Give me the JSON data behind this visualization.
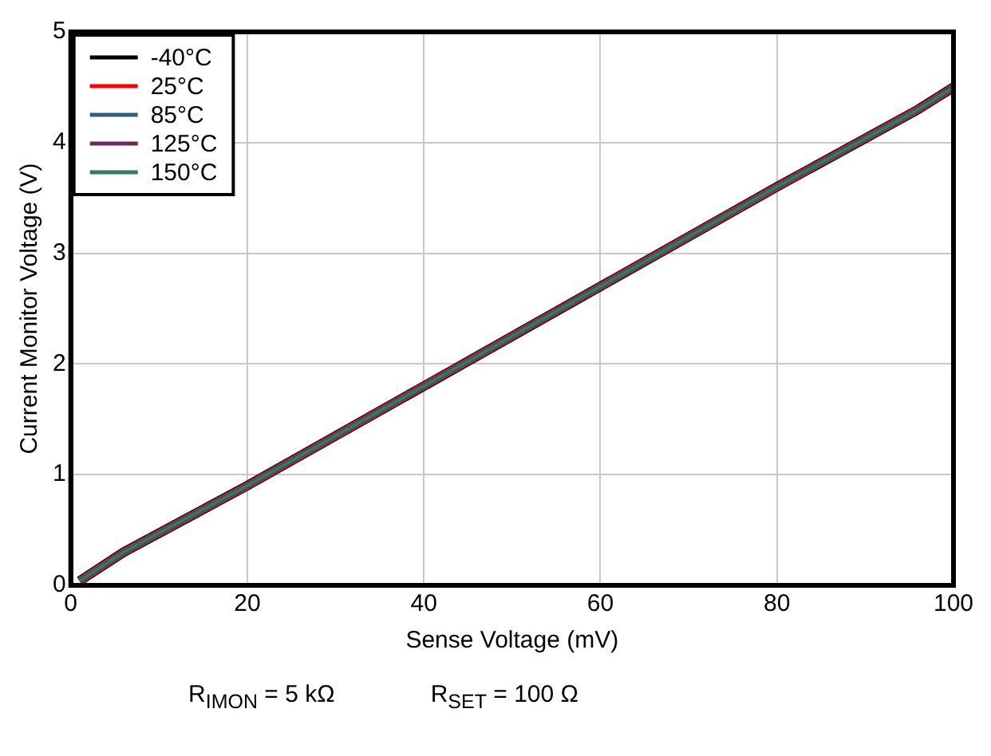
{
  "chart_data": {
    "type": "line",
    "xlabel": "Sense Voltage (mV)",
    "ylabel": "Current Monitor Voltage (V)",
    "x": [
      1,
      6,
      20,
      40,
      60,
      80,
      96,
      100
    ],
    "series": [
      {
        "name": "-40°C",
        "color": "#000000",
        "values": [
          0.04,
          0.3,
          0.9,
          1.8,
          2.7,
          3.6,
          4.3,
          4.5
        ]
      },
      {
        "name": "25°C",
        "color": "#ff0000",
        "values": [
          0.04,
          0.3,
          0.9,
          1.8,
          2.7,
          3.6,
          4.3,
          4.5
        ]
      },
      {
        "name": "85°C",
        "color": "#2f5f7a",
        "values": [
          0.04,
          0.3,
          0.9,
          1.8,
          2.7,
          3.6,
          4.3,
          4.5
        ]
      },
      {
        "name": "125°C",
        "color": "#6a2c5e",
        "values": [
          0.04,
          0.3,
          0.9,
          1.8,
          2.7,
          3.6,
          4.3,
          4.5
        ]
      },
      {
        "name": "150°C",
        "color": "#2e7d5b",
        "values": [
          0.04,
          0.3,
          0.9,
          1.8,
          2.7,
          3.6,
          4.3,
          4.5
        ]
      }
    ],
    "xlim": [
      0,
      100
    ],
    "xticks": [
      0,
      20,
      40,
      60,
      80,
      100
    ],
    "ylim": [
      0,
      5
    ],
    "yticks": [
      0,
      1,
      2,
      3,
      4,
      5
    ],
    "grid": true,
    "legend": "top left",
    "marker": "none",
    "line_style": "solid",
    "annotations": [
      "R$_{IMON}$ = 5 kΩ",
      "R$_{SET}$ = 100 Ω"
    ]
  }
}
